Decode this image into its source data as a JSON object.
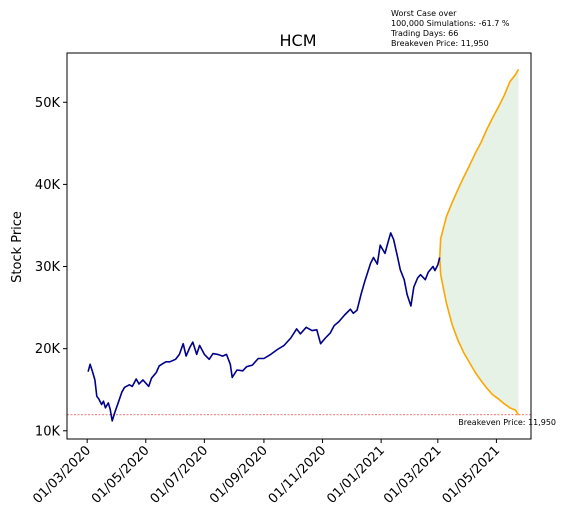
{
  "chart_data": {
    "type": "line",
    "title": "HCM",
    "xlabel": "",
    "ylabel": "Stock Price",
    "ylim": [
      9000,
      56000
    ],
    "xlim": [
      "2020-02-09",
      "2021-06-06"
    ],
    "yticks": [
      10000,
      20000,
      30000,
      40000,
      50000
    ],
    "ytick_labels": [
      "10K",
      "20K",
      "30K",
      "40K",
      "50K"
    ],
    "xticks": [
      "2020-03-01",
      "2020-05-01",
      "2020-07-01",
      "2020-09-01",
      "2020-11-01",
      "2021-01-01",
      "2021-03-01",
      "2021-05-01"
    ],
    "xtick_labels": [
      "01/03/2020",
      "01/05/2020",
      "01/07/2020",
      "01/09/2020",
      "01/11/2020",
      "01/01/2021",
      "01/03/2021",
      "01/05/2021"
    ],
    "grid": false,
    "annotation_lines": [
      "Worst Case over",
      "100,000 Simulations: -61.7 %",
      "Trading Days: 66",
      "Breakeven Price: 11,950"
    ],
    "breakeven": {
      "value": 11950,
      "label": "Breakeven Price: 11,950",
      "color": "#d62728"
    },
    "historical": {
      "color": "#00008b",
      "points": [
        [
          "2020-03-02",
          17200
        ],
        [
          "2020-03-04",
          18100
        ],
        [
          "2020-03-06",
          17400
        ],
        [
          "2020-03-09",
          16200
        ],
        [
          "2020-03-11",
          14200
        ],
        [
          "2020-03-13",
          13900
        ],
        [
          "2020-03-16",
          13200
        ],
        [
          "2020-03-18",
          13600
        ],
        [
          "2020-03-20",
          12800
        ],
        [
          "2020-03-23",
          13400
        ],
        [
          "2020-03-25",
          12600
        ],
        [
          "2020-03-27",
          11200
        ],
        [
          "2020-03-30",
          12300
        ],
        [
          "2020-04-02",
          13300
        ],
        [
          "2020-04-06",
          14700
        ],
        [
          "2020-04-09",
          15300
        ],
        [
          "2020-04-14",
          15600
        ],
        [
          "2020-04-17",
          15400
        ],
        [
          "2020-04-21",
          16300
        ],
        [
          "2020-04-24",
          15700
        ],
        [
          "2020-04-28",
          16200
        ],
        [
          "2020-05-04",
          15400
        ],
        [
          "2020-05-07",
          16400
        ],
        [
          "2020-05-12",
          17100
        ],
        [
          "2020-05-15",
          17900
        ],
        [
          "2020-05-19",
          18200
        ],
        [
          "2020-05-22",
          18400
        ],
        [
          "2020-05-26",
          18400
        ],
        [
          "2020-06-01",
          18700
        ],
        [
          "2020-06-05",
          19300
        ],
        [
          "2020-06-09",
          20600
        ],
        [
          "2020-06-12",
          19100
        ],
        [
          "2020-06-16",
          20200
        ],
        [
          "2020-06-19",
          20800
        ],
        [
          "2020-06-23",
          19300
        ],
        [
          "2020-06-26",
          20400
        ],
        [
          "2020-07-01",
          19300
        ],
        [
          "2020-07-06",
          18700
        ],
        [
          "2020-07-10",
          19400
        ],
        [
          "2020-07-15",
          19300
        ],
        [
          "2020-07-20",
          19100
        ],
        [
          "2020-07-24",
          19300
        ],
        [
          "2020-07-28",
          18100
        ],
        [
          "2020-07-30",
          16500
        ],
        [
          "2020-08-04",
          17400
        ],
        [
          "2020-08-10",
          17300
        ],
        [
          "2020-08-14",
          17800
        ],
        [
          "2020-08-20",
          18000
        ],
        [
          "2020-08-26",
          18800
        ],
        [
          "2020-09-01",
          18800
        ],
        [
          "2020-09-08",
          19300
        ],
        [
          "2020-09-15",
          19900
        ],
        [
          "2020-09-22",
          20400
        ],
        [
          "2020-09-29",
          21300
        ],
        [
          "2020-10-05",
          22400
        ],
        [
          "2020-10-09",
          21800
        ],
        [
          "2020-10-15",
          22600
        ],
        [
          "2020-10-21",
          22200
        ],
        [
          "2020-10-26",
          22300
        ],
        [
          "2020-10-30",
          20600
        ],
        [
          "2020-11-04",
          21300
        ],
        [
          "2020-11-09",
          21900
        ],
        [
          "2020-11-13",
          22800
        ],
        [
          "2020-11-18",
          23300
        ],
        [
          "2020-11-24",
          24100
        ],
        [
          "2020-11-30",
          24800
        ],
        [
          "2020-12-03",
          24300
        ],
        [
          "2020-12-07",
          24700
        ],
        [
          "2020-12-11",
          26600
        ],
        [
          "2020-12-15",
          28200
        ],
        [
          "2020-12-18",
          29300
        ],
        [
          "2020-12-21",
          30400
        ],
        [
          "2020-12-24",
          31100
        ],
        [
          "2020-12-28",
          30300
        ],
        [
          "2020-12-31",
          32600
        ],
        [
          "2021-01-05",
          31600
        ],
        [
          "2021-01-08",
          32900
        ],
        [
          "2021-01-11",
          34100
        ],
        [
          "2021-01-14",
          33300
        ],
        [
          "2021-01-18",
          31200
        ],
        [
          "2021-01-21",
          29600
        ],
        [
          "2021-01-25",
          28400
        ],
        [
          "2021-01-28",
          26600
        ],
        [
          "2021-02-01",
          25200
        ],
        [
          "2021-02-04",
          27500
        ],
        [
          "2021-02-08",
          28600
        ],
        [
          "2021-02-11",
          29000
        ],
        [
          "2021-02-16",
          28400
        ],
        [
          "2021-02-19",
          29300
        ],
        [
          "2021-02-24",
          30000
        ],
        [
          "2021-02-26",
          29500
        ],
        [
          "2021-03-01",
          30200
        ],
        [
          "2021-03-03",
          31100
        ]
      ]
    },
    "simulation": {
      "color": "#ffa500",
      "fill_color": "#e5f2e5",
      "upper": [
        [
          "2021-03-03",
          31100
        ],
        [
          "2021-03-04",
          33400
        ],
        [
          "2021-03-10",
          36100
        ],
        [
          "2021-03-16",
          37800
        ],
        [
          "2021-03-22",
          39400
        ],
        [
          "2021-03-28",
          40900
        ],
        [
          "2021-04-03",
          42300
        ],
        [
          "2021-04-09",
          43800
        ],
        [
          "2021-04-15",
          45100
        ],
        [
          "2021-04-21",
          46700
        ],
        [
          "2021-04-27",
          48100
        ],
        [
          "2021-05-03",
          49400
        ],
        [
          "2021-05-09",
          50800
        ],
        [
          "2021-05-15",
          52500
        ],
        [
          "2021-05-21",
          53400
        ],
        [
          "2021-05-24",
          54000
        ]
      ],
      "lower": [
        [
          "2021-03-03",
          31100
        ],
        [
          "2021-03-04",
          29000
        ],
        [
          "2021-03-10",
          25500
        ],
        [
          "2021-03-16",
          22900
        ],
        [
          "2021-03-22",
          21000
        ],
        [
          "2021-03-28",
          19500
        ],
        [
          "2021-04-03",
          18300
        ],
        [
          "2021-04-09",
          17100
        ],
        [
          "2021-04-15",
          16100
        ],
        [
          "2021-04-21",
          15200
        ],
        [
          "2021-04-27",
          14400
        ],
        [
          "2021-05-03",
          13900
        ],
        [
          "2021-05-09",
          13300
        ],
        [
          "2021-05-15",
          12800
        ],
        [
          "2021-05-21",
          12500
        ],
        [
          "2021-05-24",
          11900
        ]
      ]
    }
  }
}
